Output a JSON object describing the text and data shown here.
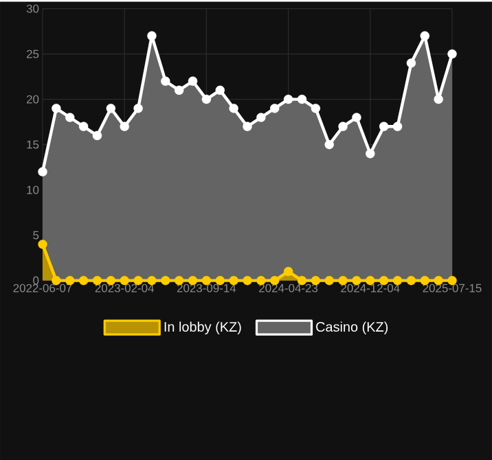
{
  "chart_data": {
    "type": "area",
    "categories": [
      "2022-06-07",
      null,
      null,
      null,
      null,
      null,
      "2023-02-04",
      null,
      null,
      null,
      null,
      null,
      "2023-09-14",
      null,
      null,
      null,
      null,
      null,
      "2024-04-23",
      null,
      null,
      null,
      null,
      null,
      "2024-12-04",
      null,
      null,
      null,
      null,
      null,
      "2025-07-15"
    ],
    "series": [
      {
        "name": "In lobby (KZ)",
        "color": "#ffcc00",
        "values": [
          4,
          0,
          0,
          0,
          0,
          0,
          0,
          0,
          0,
          0,
          0,
          0,
          0,
          0,
          0,
          0,
          0,
          0,
          1,
          0,
          0,
          0,
          0,
          0,
          0,
          0,
          0,
          0,
          0,
          0,
          0
        ]
      },
      {
        "name": "Casino (KZ)",
        "color": "#ffffff",
        "values": [
          12,
          19,
          18,
          17,
          16,
          19,
          17,
          19,
          27,
          22,
          21,
          22,
          20,
          21,
          19,
          17,
          18,
          19,
          20,
          20,
          19,
          15,
          17,
          18,
          14,
          17,
          17,
          24,
          27,
          20,
          25
        ]
      }
    ],
    "ylim": [
      0,
      30
    ],
    "yticks": [
      0,
      5,
      10,
      15,
      20,
      25,
      30
    ],
    "grid": true,
    "legend": "bottom",
    "marker": "circle"
  }
}
